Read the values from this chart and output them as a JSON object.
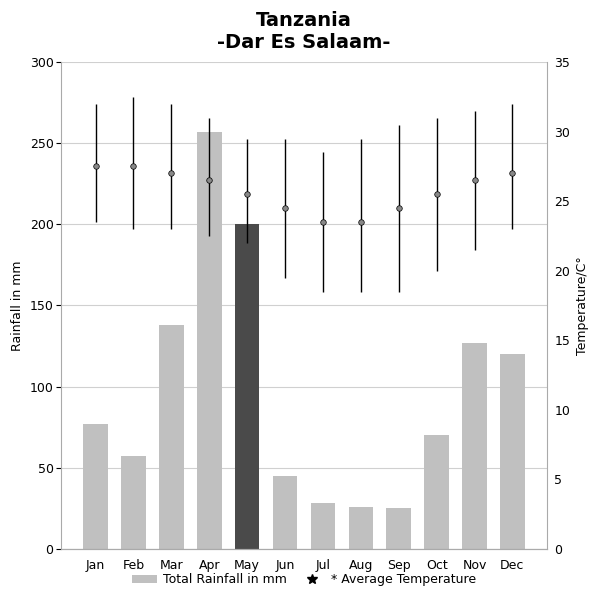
{
  "title": "Tanzania\n-Dar Es Salaam-",
  "months": [
    "Jan",
    "Feb",
    "Mar",
    "Apr",
    "May",
    "Jun",
    "Jul",
    "Aug",
    "Sep",
    "Oct",
    "Nov",
    "Dec"
  ],
  "rainfall_mm": [
    77,
    57,
    138,
    257,
    200,
    45,
    28,
    26,
    25,
    70,
    127,
    120
  ],
  "bar_colors": [
    "#c0c0c0",
    "#c0c0c0",
    "#c0c0c0",
    "#c0c0c0",
    "#4a4a4a",
    "#c0c0c0",
    "#c0c0c0",
    "#c0c0c0",
    "#c0c0c0",
    "#c0c0c0",
    "#c0c0c0",
    "#c0c0c0"
  ],
  "avg_temp_C": [
    27.5,
    27.5,
    27.0,
    26.5,
    25.5,
    24.5,
    23.5,
    23.5,
    24.5,
    25.5,
    26.5,
    27.0
  ],
  "temp_high_C": [
    32.0,
    32.5,
    32.0,
    31.0,
    29.5,
    29.5,
    28.5,
    29.5,
    30.5,
    31.0,
    31.5,
    32.0
  ],
  "temp_low_C": [
    23.5,
    23.0,
    23.0,
    22.5,
    22.0,
    19.5,
    18.5,
    18.5,
    18.5,
    20.0,
    21.5,
    23.0
  ],
  "ylabel_left": "Rainfall in mm",
  "ylabel_right": "Temperature/C°",
  "ylim_left": [
    0,
    300
  ],
  "ylim_right": [
    0,
    35
  ],
  "yticks_left": [
    0,
    50,
    100,
    150,
    200,
    250,
    300
  ],
  "yticks_right": [
    0,
    5,
    10,
    15,
    20,
    25,
    30,
    35
  ],
  "legend_rainfall": "Total Rainfall in mm",
  "legend_temp": "* Average Temperature",
  "background_color": "#ffffff",
  "grid_color": "#d0d0d0",
  "title_fontsize": 14
}
